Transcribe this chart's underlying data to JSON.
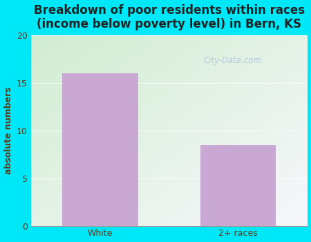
{
  "title": "Breakdown of poor residents within races\n(income below poverty level) in Bern, KS",
  "categories": [
    "White",
    "2+ races"
  ],
  "values": [
    16,
    8.5
  ],
  "bar_color": "#c9a8d4",
  "ylabel": "absolute numbers",
  "ylim": [
    0,
    20
  ],
  "yticks": [
    0,
    5,
    10,
    15,
    20
  ],
  "background_outer": "#00e8f8",
  "bg_top_right": "#f5f5f5",
  "bg_bottom_left": "#d8eed8",
  "title_fontsize": 12,
  "axis_label_fontsize": 9,
  "tick_fontsize": 9,
  "title_color": "#222222",
  "ylabel_color": "#5d3a1a",
  "tick_label_color": "#5d3a1a",
  "watermark_text": "City-Data.com",
  "watermark_color": "#aac8d8",
  "watermark_alpha": 0.85
}
